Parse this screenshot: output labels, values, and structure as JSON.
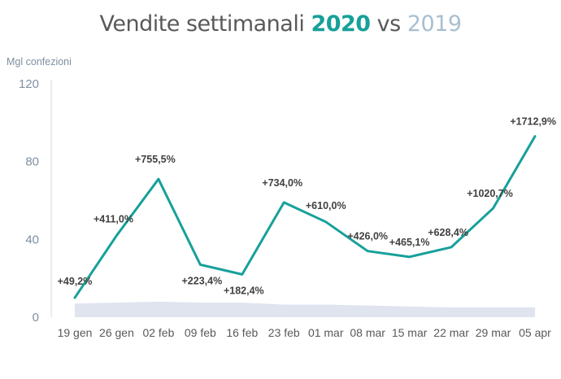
{
  "title": {
    "prefix": "Vendite settimanali ",
    "year_current": "2020",
    "connector": " vs ",
    "year_previous": "2019"
  },
  "ylabel": "Mgl confezioni",
  "colors": {
    "series_2020": "#17a09a",
    "series_2019": "#dfe4ef",
    "text": "#595959",
    "axis_text": "#7f8fa0"
  },
  "chart_data": {
    "type": "line",
    "title": "Vendite settimanali 2020 vs 2019",
    "ylabel": "Mgl confezioni",
    "xlabel": "",
    "ylim": [
      0,
      120
    ],
    "yticks": [
      "0",
      "40",
      "80",
      "120"
    ],
    "grid": false,
    "legend": "none",
    "categories": [
      "19 gen",
      "26 gen",
      "02 feb",
      "09 feb",
      "16 feb",
      "23 feb",
      "01 mar",
      "08 mar",
      "15 mar",
      "22 mar",
      "29 mar",
      "05 apr"
    ],
    "series": [
      {
        "name": "2020",
        "chart_type": "line",
        "values": [
          10,
          42,
          71,
          27,
          22,
          59,
          49,
          34,
          31,
          36,
          56,
          93
        ],
        "data_labels": [
          "+49,2%",
          "+411,0%",
          "+755,5%",
          "+223,4%",
          "+182,4%",
          "+734,0%",
          "+610,0%",
          "+426,0%",
          "+465,1%",
          "+628,4%",
          "+1020,7%",
          "+1712,9%"
        ]
      },
      {
        "name": "2019",
        "chart_type": "area",
        "values": [
          7,
          7.5,
          8,
          7.5,
          7.5,
          6.5,
          6.5,
          6,
          5.5,
          5,
          5,
          5
        ]
      }
    ]
  }
}
